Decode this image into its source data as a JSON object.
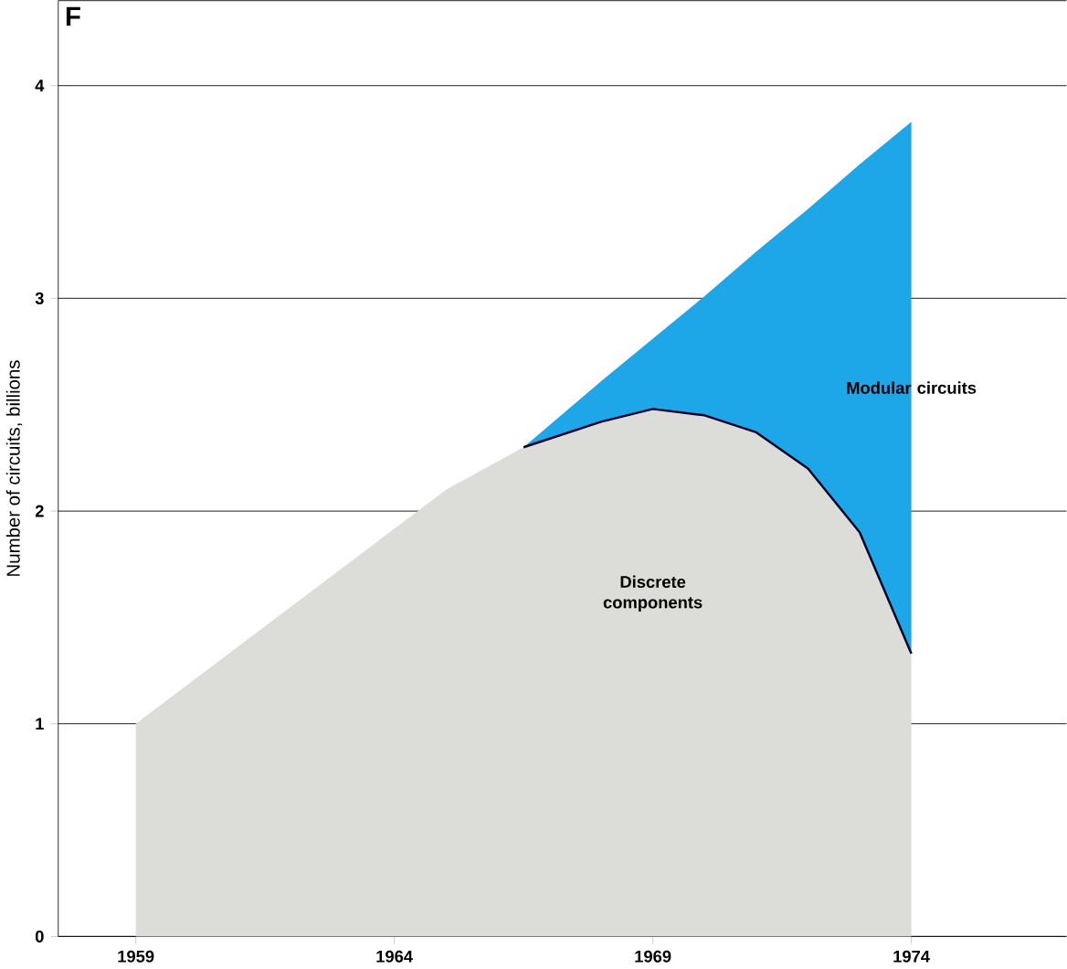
{
  "chart_data": {
    "type": "area",
    "title": "F",
    "ylabel": "Number of circuits, billions",
    "xlim": [
      1957.5,
      1977
    ],
    "ylim": [
      0,
      4.4
    ],
    "xticks": [
      1959,
      1964,
      1969,
      1974
    ],
    "yticks": [
      0,
      1,
      2,
      3,
      4
    ],
    "grid": "y",
    "stacked": true,
    "x": [
      1959,
      1962,
      1965,
      1966.5,
      1968,
      1969,
      1970,
      1971,
      1972,
      1973,
      1974
    ],
    "series": [
      {
        "name": "Discrete components",
        "color": "#dcdcd8",
        "values": [
          1.0,
          1.55,
          2.1,
          2.3,
          2.42,
          2.48,
          2.45,
          2.37,
          2.2,
          1.9,
          1.33
        ]
      },
      {
        "name": "Modular circuits",
        "color": "#1ea7e8",
        "values": [
          null,
          null,
          null,
          0,
          0.19,
          0.33,
          0.56,
          0.85,
          1.22,
          1.73,
          2.5
        ]
      }
    ]
  }
}
